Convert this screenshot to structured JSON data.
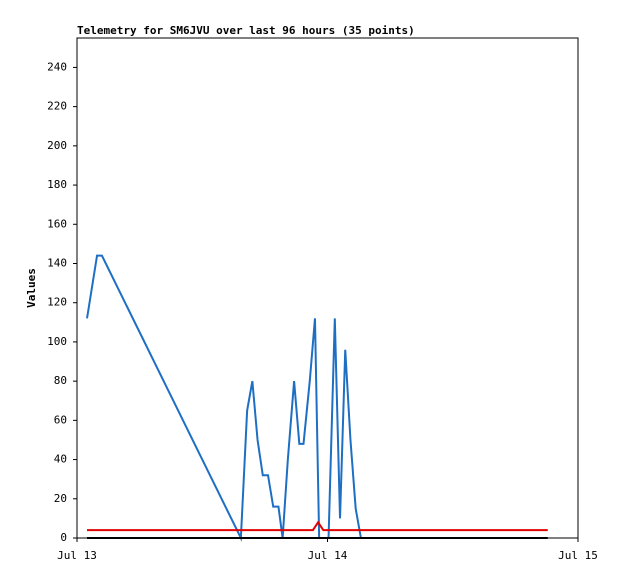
{
  "chart_data": {
    "type": "line",
    "title": "Telemetry for SM6JVU over last 96 hours (35 points)",
    "y_label": "Values",
    "xlim": [
      0,
      48
    ],
    "xticks": [
      {
        "value": 0,
        "label": "Jul 13"
      },
      {
        "value": 24,
        "label": "Jul 14"
      },
      {
        "value": 48,
        "label": "Jul 15"
      }
    ],
    "ylim": [
      0,
      255
    ],
    "yticks": [
      0,
      20,
      40,
      60,
      80,
      100,
      120,
      140,
      160,
      180,
      200,
      220,
      240
    ],
    "grid": false,
    "series": [
      {
        "color": "#1e6fc4",
        "x": [
          0.96,
          1.92,
          2.39,
          15.7,
          16.3,
          16.8,
          17.3,
          17.8,
          18.3,
          18.8,
          19.3,
          19.7,
          20.2,
          20.8,
          21.3,
          21.7,
          22.3,
          22.8,
          23.2,
          24.1,
          24.7,
          25.2,
          25.7,
          26.2,
          26.7,
          27.2
        ],
        "values": [
          112,
          144,
          144,
          0,
          65,
          80,
          50,
          32,
          32,
          16,
          16,
          0,
          40,
          80,
          48,
          48,
          80,
          112,
          0,
          0,
          112,
          10,
          96,
          50,
          15,
          0
        ]
      },
      {
        "color": "#e00000",
        "x": [
          0.96,
          22.6,
          23.1,
          23.6,
          45.1
        ],
        "values": [
          4,
          4,
          8,
          4,
          4
        ]
      },
      {
        "color": "#000000",
        "x": [
          0.96,
          45.1
        ],
        "values": [
          0,
          0
        ]
      }
    ]
  }
}
